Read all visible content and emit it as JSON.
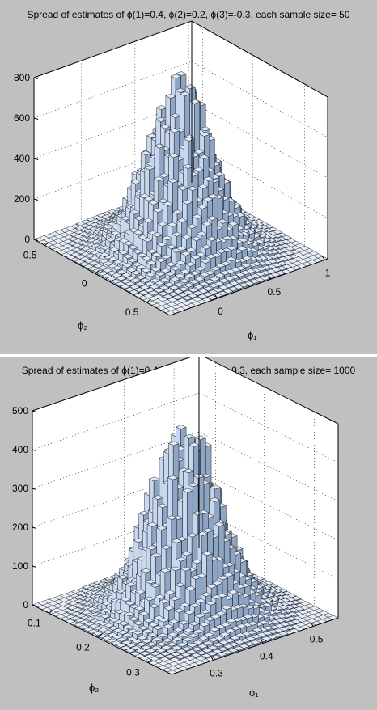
{
  "chart_data": [
    {
      "type": "bar3d",
      "title": "Spread of estimates of ϕ(1)=0.4, ϕ(2)=0.2, ϕ(3)=-0.3, each sample size= 50",
      "xlabel": "ϕ₁",
      "ylabel": "ϕ₂",
      "zlabel": "",
      "x_ticks": [
        "0",
        "0.5",
        "1"
      ],
      "y_ticks": [
        "0.5",
        "0",
        "-0.5"
      ],
      "z_ticks": [
        "0",
        "200",
        "400",
        "600",
        "800"
      ],
      "zlim": [
        0,
        800
      ],
      "grid": true,
      "peak": {
        "x": 0.4,
        "y": 0.2,
        "z": 760
      },
      "spread": 0.16
    },
    {
      "type": "bar3d",
      "title": "Spread of estimates of ϕ(1)=0.4, ϕ(2)=0.2, ϕ(3)=-0.3, each sample size= 1000",
      "xlabel": "ϕ₁",
      "ylabel": "ϕ₂",
      "zlabel": "",
      "x_ticks": [
        "0.3",
        "0.4",
        "0.5"
      ],
      "y_ticks": [
        "0.3",
        "0.2",
        "0.1"
      ],
      "z_ticks": [
        "0",
        "100",
        "200",
        "300",
        "400",
        "500"
      ],
      "zlim": [
        0,
        500
      ],
      "grid": true,
      "peak": {
        "x": 0.4,
        "y": 0.2,
        "z": 450
      },
      "spread": 0.04
    }
  ],
  "colors": {
    "background": "#c0c0c0",
    "bar_face": "#c6d7ee",
    "bar_side": "#8fa5c4",
    "floor": "#ffffff",
    "edge": "#000000"
  }
}
